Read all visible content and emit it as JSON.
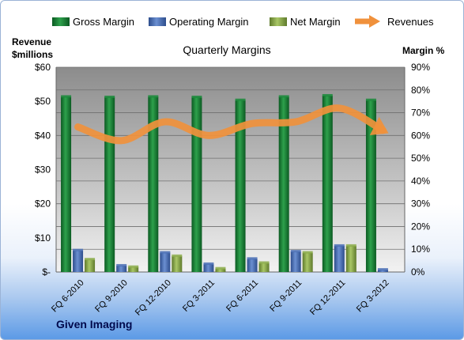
{
  "chart_data": {
    "type": "bar",
    "title": "Quarterly Margins",
    "left_axis_title_line1": "Revenue",
    "left_axis_title_line2": "$millions",
    "right_axis_title": "Margin %",
    "company_label": "Given Imaging",
    "categories": [
      "FQ 6-2010",
      "FQ 9-2010",
      "FQ 12-2010",
      "FQ 3-2011",
      "FQ 6-2011",
      "FQ 9-2011",
      "FQ 12-2011",
      "FQ 3-2012"
    ],
    "left_ylim": [
      0,
      60
    ],
    "left_ticks": [
      "$-",
      "$10",
      "$20",
      "$30",
      "$40",
      "$50",
      "$60"
    ],
    "right_ylim": [
      0,
      90
    ],
    "right_ticks": [
      "0%",
      "10%",
      "20%",
      "30%",
      "40%",
      "50%",
      "60%",
      "70%",
      "80%",
      "90%"
    ],
    "grid": true,
    "legend_position": "top",
    "series": [
      {
        "name": "Gross Margin",
        "axis": "right",
        "color": "#1a8a3a",
        "values": [
          77,
          76.8,
          77,
          76.8,
          75.5,
          77,
          77.5,
          75.5
        ]
      },
      {
        "name": "Operating Margin",
        "axis": "right",
        "color": "#4a6fb5",
        "values": [
          9.5,
          2.8,
          8.5,
          3.5,
          5.8,
          9,
          11.5,
          1
        ]
      },
      {
        "name": "Net Margin",
        "axis": "right",
        "color": "#8bac4a",
        "values": [
          5.5,
          2.2,
          7,
          1.5,
          4,
          8.5,
          11.5,
          0
        ]
      }
    ],
    "line_series": {
      "name": "Revenues",
      "axis": "left",
      "color": "#f0913c",
      "values": [
        42.5,
        38.5,
        44,
        40,
        43.5,
        44,
        48,
        41.5
      ]
    }
  }
}
